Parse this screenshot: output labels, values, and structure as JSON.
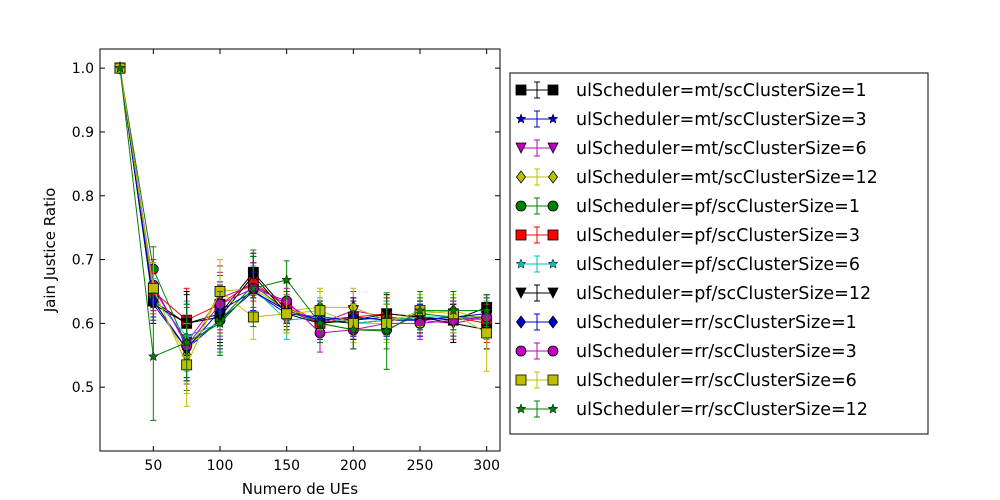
{
  "chart_data": {
    "type": "line",
    "title": "",
    "xlabel": "Numero de UEs",
    "ylabel": "Jain Justice Ratio",
    "xlim": [
      10,
      310
    ],
    "ylim": [
      0.4,
      1.03
    ],
    "xticks": [
      50,
      100,
      150,
      200,
      250,
      300
    ],
    "yticks": [
      0.5,
      0.6,
      0.7,
      0.8,
      0.9,
      1.0
    ],
    "grid": false,
    "legend_position": "right, outside plot",
    "x": [
      25,
      50,
      75,
      100,
      125,
      150,
      175,
      200,
      225,
      250,
      275,
      300
    ],
    "series": [
      {
        "name": "ulScheduler=mt/scClusterSize=1",
        "color": "#000000",
        "marker": "square",
        "values": [
          1.0,
          0.635,
          0.6,
          0.615,
          0.68,
          0.62,
          0.605,
          0.6,
          0.605,
          0.61,
          0.605,
          0.625
        ],
        "error": [
          0,
          0.02,
          0.045,
          0.045,
          0.025,
          0.02,
          0.025,
          0.025,
          0.025,
          0.025,
          0.025,
          0.02
        ]
      },
      {
        "name": "ulScheduler=mt/scClusterSize=3",
        "color": "#0000cc",
        "marker": "star",
        "values": [
          1.0,
          0.63,
          0.56,
          0.605,
          0.65,
          0.615,
          0.61,
          0.605,
          0.61,
          0.605,
          0.61,
          0.605
        ],
        "error": [
          0,
          0.025,
          0.045,
          0.045,
          0.03,
          0.025,
          0.025,
          0.025,
          0.025,
          0.025,
          0.025,
          0.025
        ]
      },
      {
        "name": "ulScheduler=mt/scClusterSize=6",
        "color": "#bf00bf",
        "marker": "triangle-down",
        "values": [
          1.0,
          0.655,
          0.57,
          0.64,
          0.66,
          0.63,
          0.6,
          0.62,
          0.61,
          0.605,
          0.6,
          0.61
        ],
        "error": [
          0,
          0.04,
          0.06,
          0.05,
          0.035,
          0.025,
          0.03,
          0.03,
          0.03,
          0.025,
          0.03,
          0.03
        ]
      },
      {
        "name": "ulScheduler=mt/scClusterSize=12",
        "color": "#bfbf00",
        "marker": "diamond",
        "values": [
          1.0,
          0.64,
          0.55,
          0.65,
          0.655,
          0.62,
          0.625,
          0.625,
          0.605,
          0.615,
          0.62,
          0.605
        ],
        "error": [
          0,
          0.04,
          0.06,
          0.05,
          0.04,
          0.03,
          0.03,
          0.03,
          0.03,
          0.025,
          0.03,
          0.03
        ]
      },
      {
        "name": "ulScheduler=pf/scClusterSize=1",
        "color": "#008000",
        "marker": "circle",
        "values": [
          1.0,
          0.685,
          0.565,
          0.605,
          0.66,
          0.62,
          0.6,
          0.59,
          0.59,
          0.615,
          0.61,
          0.61
        ],
        "error": [
          0,
          0.035,
          0.07,
          0.05,
          0.045,
          0.03,
          0.03,
          0.03,
          0.03,
          0.025,
          0.03,
          0.03
        ]
      },
      {
        "name": "ulScheduler=pf/scClusterSize=3",
        "color": "#ff0000",
        "marker": "square",
        "values": [
          1.0,
          0.65,
          0.605,
          0.63,
          0.665,
          0.625,
          0.6,
          0.61,
          0.615,
          0.61,
          0.61,
          0.6
        ],
        "error": [
          0,
          0.03,
          0.05,
          0.045,
          0.03,
          0.025,
          0.03,
          0.03,
          0.025,
          0.025,
          0.025,
          0.03
        ]
      },
      {
        "name": "ulScheduler=pf/scClusterSize=6",
        "color": "#00bfbf",
        "marker": "star",
        "values": [
          1.0,
          0.64,
          0.58,
          0.6,
          0.655,
          0.605,
          0.61,
          0.6,
          0.605,
          0.61,
          0.61,
          0.605
        ],
        "error": [
          0,
          0.03,
          0.055,
          0.05,
          0.035,
          0.03,
          0.03,
          0.03,
          0.03,
          0.025,
          0.025,
          0.03
        ]
      },
      {
        "name": "ulScheduler=pf/scClusterSize=12",
        "color": "#000000",
        "marker": "triangle-down",
        "values": [
          1.0,
          0.63,
          0.6,
          0.61,
          0.675,
          0.615,
          0.6,
          0.605,
          0.615,
          0.61,
          0.6,
          0.59
        ],
        "error": [
          0,
          0.03,
          0.05,
          0.045,
          0.035,
          0.03,
          0.03,
          0.03,
          0.03,
          0.025,
          0.03,
          0.03
        ]
      },
      {
        "name": "ulScheduler=rr/scClusterSize=1",
        "color": "#0000cc",
        "marker": "diamond",
        "values": [
          1.0,
          0.635,
          0.56,
          0.62,
          0.65,
          0.62,
          0.605,
          0.61,
          0.605,
          0.605,
          0.61,
          0.615
        ],
        "error": [
          0,
          0.025,
          0.05,
          0.045,
          0.03,
          0.025,
          0.03,
          0.03,
          0.025,
          0.025,
          0.025,
          0.03
        ]
      },
      {
        "name": "ulScheduler=rr/scClusterSize=3",
        "color": "#bf00bf",
        "marker": "circle",
        "values": [
          1.0,
          0.66,
          0.565,
          0.63,
          0.655,
          0.635,
          0.585,
          0.59,
          0.6,
          0.6,
          0.605,
          0.61
        ],
        "error": [
          0,
          0.04,
          0.06,
          0.05,
          0.04,
          0.03,
          0.03,
          0.03,
          0.03,
          0.025,
          0.03,
          0.03
        ]
      },
      {
        "name": "ulScheduler=rr/scClusterSize=6",
        "color": "#bfbf00",
        "marker": "square",
        "values": [
          1.0,
          0.655,
          0.535,
          0.65,
          0.61,
          0.615,
          0.62,
          0.6,
          0.6,
          0.62,
          0.615,
          0.585
        ],
        "error": [
          0,
          0.04,
          0.065,
          0.05,
          0.035,
          0.03,
          0.03,
          0.03,
          0.03,
          0.025,
          0.03,
          0.06
        ]
      },
      {
        "name": "ulScheduler=rr/scClusterSize=12",
        "color": "#007f00",
        "marker": "star",
        "values": [
          1.0,
          0.548,
          0.57,
          0.6,
          0.655,
          0.668,
          0.6,
          0.59,
          0.588,
          0.62,
          0.62,
          0.62
        ],
        "error": [
          0,
          0.1,
          0.06,
          0.05,
          0.06,
          0.03,
          0.03,
          0.03,
          0.06,
          0.03,
          0.03,
          0.025
        ]
      }
    ]
  }
}
